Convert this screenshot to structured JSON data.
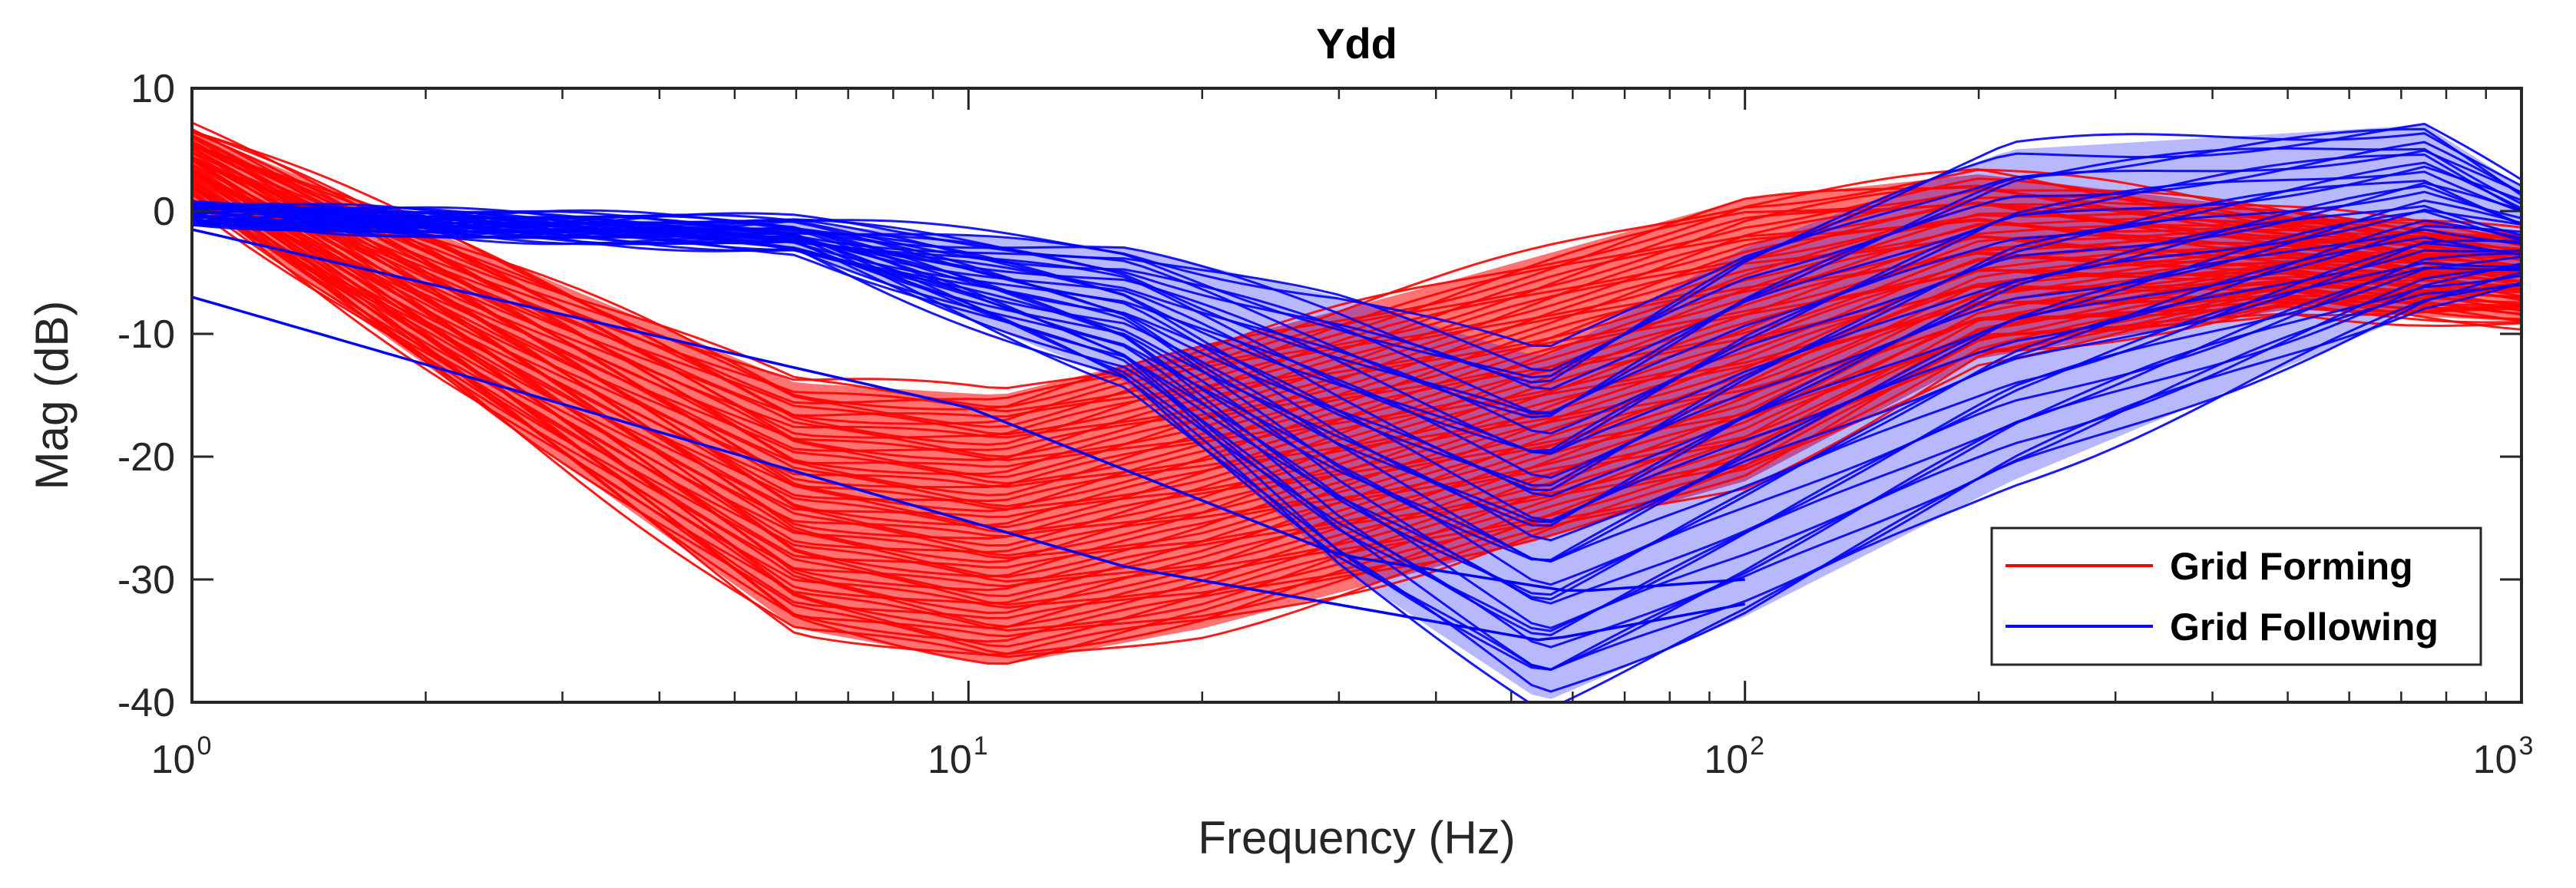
{
  "chart_data": {
    "type": "line",
    "title": "Ydd",
    "xlabel": "Frequency (Hz)",
    "ylabel": "Mag (dB)",
    "xscale": "log",
    "xlim": [
      1,
      1000
    ],
    "ylim": [
      -40,
      10
    ],
    "x_ticks": [
      {
        "base": "10",
        "exp": "0"
      },
      {
        "base": "10",
        "exp": "1"
      },
      {
        "base": "10",
        "exp": "2"
      },
      {
        "base": "10",
        "exp": "3"
      }
    ],
    "y_ticks": [
      "10",
      "0",
      "-10",
      "-20",
      "-30",
      "-40"
    ],
    "legend": {
      "position": "bottom-right",
      "entries": [
        {
          "label": "Grid Forming",
          "color": "#ff0000"
        },
        {
          "label": "Grid Following",
          "color": "#0000ff"
        }
      ]
    },
    "series": [
      {
        "name": "Grid Forming",
        "color": "#ff0000",
        "x": [
          1,
          6,
          11,
          20,
          40,
          100,
          200,
          500,
          1000
        ],
        "y_upper": [
          6.5,
          -14,
          -15,
          -11,
          -6,
          1,
          3,
          0,
          -2
        ],
        "y_lower": [
          1,
          -34,
          -37,
          -34,
          -29,
          -22,
          -12,
          -8,
          -9
        ],
        "n_curves": 60
      },
      {
        "name": "Grid Following",
        "color": "#0000ff",
        "x": [
          1,
          6,
          16,
          30,
          55,
          100,
          220,
          750,
          1000
        ],
        "y_upper": [
          0,
          -1,
          -3,
          -7,
          -12,
          -3,
          5,
          7,
          2
        ],
        "y_lower": [
          -0.5,
          -3,
          -14,
          -29,
          -40,
          -33,
          -22,
          -8,
          -6
        ],
        "n_curves": 36,
        "extra_lines": [
          {
            "x": [
              1,
              16,
              55,
              100
            ],
            "y": [
              -7,
              -29,
              -35,
              -32
            ]
          },
          {
            "x": [
              1,
              10,
              30,
              60,
              100
            ],
            "y": [
              -1.5,
              -16,
              -28,
              -31,
              -30
            ]
          }
        ]
      }
    ]
  }
}
